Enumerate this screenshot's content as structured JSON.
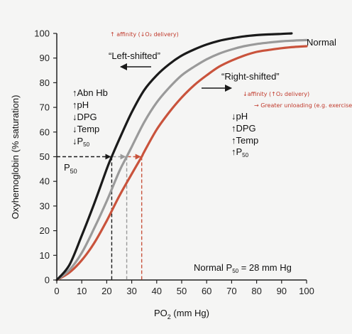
{
  "chart_data": {
    "type": "line",
    "title": "",
    "xlabel": "PO",
    "xlabel_sub": "2",
    "xlabel_unit": " (mm Hg)",
    "ylabel": "Oxyhemoglobin (% saturation)",
    "xlim": [
      0,
      100
    ],
    "ylim": [
      0,
      100
    ],
    "x_ticks": [
      "0",
      "10",
      "20",
      "30",
      "40",
      "50",
      "60",
      "70",
      "80",
      "90",
      "100"
    ],
    "y_ticks": [
      "0",
      "10",
      "20",
      "30",
      "40",
      "50",
      "60",
      "70",
      "80",
      "90",
      "100"
    ],
    "grid": false,
    "colors": {
      "left": "#1a1a1a",
      "normal": "#9a9a9a",
      "right": "#c9533c"
    },
    "series": [
      {
        "name": "",
        "key": "left",
        "p50": 22,
        "x": [
          0,
          5,
          10,
          15,
          20,
          22,
          25,
          30,
          35,
          40,
          45,
          50,
          55,
          60,
          65,
          70,
          75,
          80,
          85,
          90,
          94
        ],
        "y": [
          0,
          6,
          18,
          31,
          45,
          50,
          57,
          68,
          77,
          83,
          87.5,
          91,
          93.5,
          95.5,
          97,
          98,
          98.8,
          99.3,
          99.6,
          99.8,
          100
        ]
      },
      {
        "name": "Normal",
        "key": "normal",
        "p50": 28,
        "x": [
          0,
          5,
          10,
          15,
          20,
          25,
          28,
          30,
          35,
          40,
          45,
          50,
          55,
          60,
          65,
          70,
          75,
          80,
          85,
          90,
          95,
          100
        ],
        "y": [
          0,
          4,
          11,
          21,
          32,
          44,
          50,
          54,
          64,
          72,
          78,
          83,
          86.5,
          89.5,
          91.8,
          93.5,
          94.8,
          95.7,
          96.3,
          96.8,
          97.1,
          97.3
        ]
      },
      {
        "name": "",
        "key": "right",
        "p50": 34,
        "x": [
          0,
          5,
          10,
          15,
          20,
          25,
          30,
          34,
          35,
          40,
          45,
          50,
          55,
          60,
          65,
          70,
          75,
          80,
          85,
          90,
          95,
          100
        ],
        "y": [
          0,
          3,
          8,
          15,
          24,
          34,
          43,
          50,
          52,
          61,
          68,
          74,
          79,
          83,
          86.5,
          89,
          91,
          92.5,
          93.3,
          94,
          94.5,
          94.8
        ]
      }
    ],
    "p50_label": "P",
    "p50_label_sub": "50",
    "annotations": {
      "left_title": "“Left-shifted”",
      "right_title": "“Right-shifted”",
      "left_factors": [
        "↑Abn Hb",
        "↑pH",
        "↓DPG",
        "↓Temp"
      ],
      "left_p50_prefix": "↓P",
      "left_p50_sub": "50",
      "right_factors": [
        "↓pH",
        "↑DPG",
        "↑Temp"
      ],
      "right_p50_prefix": "↑P",
      "right_p50_sub": "50",
      "normal_p50_prefix": "Normal P",
      "normal_p50_sub": "50",
      "normal_p50_suffix": " = 28 mm Hg",
      "handwritten_left": "↑ affinity (↓O₂ delivery)",
      "handwritten_right": "↓affinity (↑O₂ delivery)",
      "handwritten_right_2": "→ Greater unloading  (e.g. exercise)"
    }
  }
}
